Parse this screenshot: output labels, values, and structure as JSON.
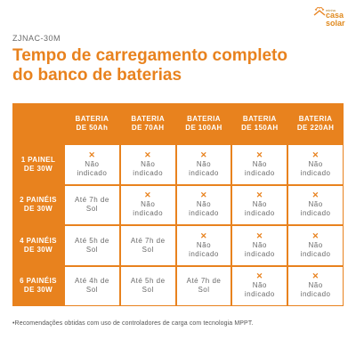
{
  "brand": {
    "small": "minha",
    "name_top": "casa",
    "name_bottom": "solar",
    "color": "#e8821e"
  },
  "code": "ZJNAC-30M",
  "title": "Tempo de carregamento completo do banco de baterias",
  "columns": [
    {
      "line1": "BATERIA",
      "line2": "DE 50Ah"
    },
    {
      "line1": "BATERIA",
      "line2": "DE 70AH"
    },
    {
      "line1": "BATERIA",
      "line2": "DE 100AH"
    },
    {
      "line1": "BATERIA",
      "line2": "DE 150AH"
    },
    {
      "line1": "BATERIA",
      "line2": "DE 220AH"
    }
  ],
  "rows": [
    {
      "line1": "1 PAINEL",
      "line2": "DE 30W",
      "cells": [
        {
          "icon": "x-icon",
          "line1": "Não",
          "line2": "indicado"
        },
        {
          "icon": "x-icon",
          "line1": "Não",
          "line2": "indicado"
        },
        {
          "icon": "x-icon",
          "line1": "Não",
          "line2": "indicado"
        },
        {
          "icon": "x-icon",
          "line1": "Não",
          "line2": "indicado"
        },
        {
          "icon": "x-icon",
          "line1": "Não",
          "line2": "indicado"
        }
      ]
    },
    {
      "line1": "2 PAINÉIS",
      "line2": "DE 30W",
      "cells": [
        {
          "icon": "",
          "line1": "Até 7h de",
          "line2": "Sol"
        },
        {
          "icon": "x-icon",
          "line1": "Não",
          "line2": "indicado"
        },
        {
          "icon": "x-icon",
          "line1": "Não",
          "line2": "indicado"
        },
        {
          "icon": "x-icon",
          "line1": "Não",
          "line2": "indicado"
        },
        {
          "icon": "x-icon",
          "line1": "Não",
          "line2": "indicado"
        }
      ]
    },
    {
      "line1": "4 PAINÉIS",
      "line2": "DE 30W",
      "cells": [
        {
          "icon": "",
          "line1": "Até 5h de",
          "line2": "Sol"
        },
        {
          "icon": "",
          "line1": "Até 7h de",
          "line2": "Sol"
        },
        {
          "icon": "x-icon",
          "line1": "Não",
          "line2": "indicado"
        },
        {
          "icon": "x-icon",
          "line1": "Não",
          "line2": "indicado"
        },
        {
          "icon": "x-icon",
          "line1": "Não",
          "line2": "indicado"
        }
      ]
    },
    {
      "line1": "6 PAINÉIS",
      "line2": "DE 30W",
      "cells": [
        {
          "icon": "",
          "line1": "Até 4h de",
          "line2": "Sol"
        },
        {
          "icon": "",
          "line1": "Até 5h de",
          "line2": "Sol"
        },
        {
          "icon": "",
          "line1": "Até 7h de",
          "line2": "Sol"
        },
        {
          "icon": "x-icon",
          "line1": "Não",
          "line2": "indicado"
        },
        {
          "icon": "x-icon",
          "line1": "Não",
          "line2": "indicado"
        }
      ]
    }
  ],
  "footnote": "•Recomendações obtidas com uso de controladores de carga com tecnologia MPPT."
}
